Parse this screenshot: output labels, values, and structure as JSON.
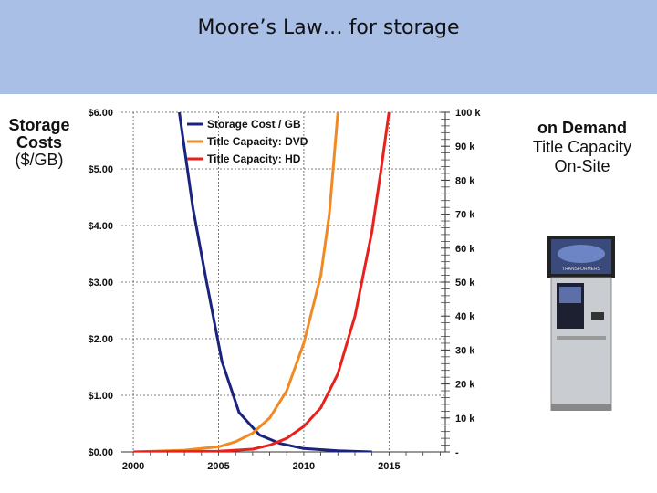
{
  "slide": {
    "title": "Moore’s Law… for storage"
  },
  "left_axis_label": {
    "line1": "Storage",
    "line2": "Costs",
    "line3": "($/GB)"
  },
  "right_axis_label": {
    "line1": "on Demand",
    "line2": "Title Capacity",
    "line3": "On-Site"
  },
  "kiosk": {
    "screen_text": "TRANSFORMERS"
  },
  "colors": {
    "title_bar": "#a9bfe5",
    "storage_cost": "#1a237e",
    "dvd": "#f08a24",
    "hd": "#e8211d"
  },
  "chart_data": {
    "type": "line",
    "x_ticks": [
      "2000",
      "2005",
      "2010",
      "2015"
    ],
    "xlim": [
      1999.3,
      2018.3
    ],
    "y_left": {
      "ticks": [
        "$0.00",
        "$1.00",
        "$2.00",
        "$3.00",
        "$4.00",
        "$5.00",
        "$6.00"
      ],
      "ylim": [
        0,
        6
      ]
    },
    "y_right": {
      "ticks": [
        "-",
        "10 k",
        "20 k",
        "30 k",
        "40 k",
        "50 k",
        "60 k",
        "70 k",
        "80 k",
        "90 k",
        "100 k"
      ],
      "ylim": [
        0,
        100000
      ]
    },
    "grid": true,
    "legend_position": "top-left",
    "series": [
      {
        "name": "Storage Cost / GB",
        "axis": "left",
        "color": "#1a237e",
        "x": [
          2002.7,
          2003.5,
          2004.3,
          2005.2,
          2006.2,
          2007.4,
          2008.6,
          2010.0,
          2012.0,
          2014.0
        ],
        "y": [
          6.0,
          4.3,
          3.0,
          1.6,
          0.7,
          0.3,
          0.15,
          0.06,
          0.02,
          0.0
        ]
      },
      {
        "name": "Title Capacity:  DVD",
        "axis": "right",
        "color": "#f08a24",
        "x": [
          2000,
          2003,
          2005,
          2006,
          2007,
          2008,
          2009,
          2010,
          2011,
          2011.5,
          2012.0
        ],
        "y": [
          0,
          500,
          1500,
          3000,
          5500,
          10000,
          18000,
          32000,
          52000,
          70000,
          100000
        ]
      },
      {
        "name": "Title Capacity:  HD",
        "axis": "right",
        "color": "#e8211d",
        "x": [
          2000,
          2005,
          2007,
          2008,
          2009,
          2010,
          2011,
          2012,
          2013,
          2014,
          2014.5,
          2015.0
        ],
        "y": [
          0,
          200,
          800,
          2000,
          4000,
          7500,
          13000,
          23000,
          40000,
          65000,
          82000,
          100000
        ]
      }
    ]
  }
}
